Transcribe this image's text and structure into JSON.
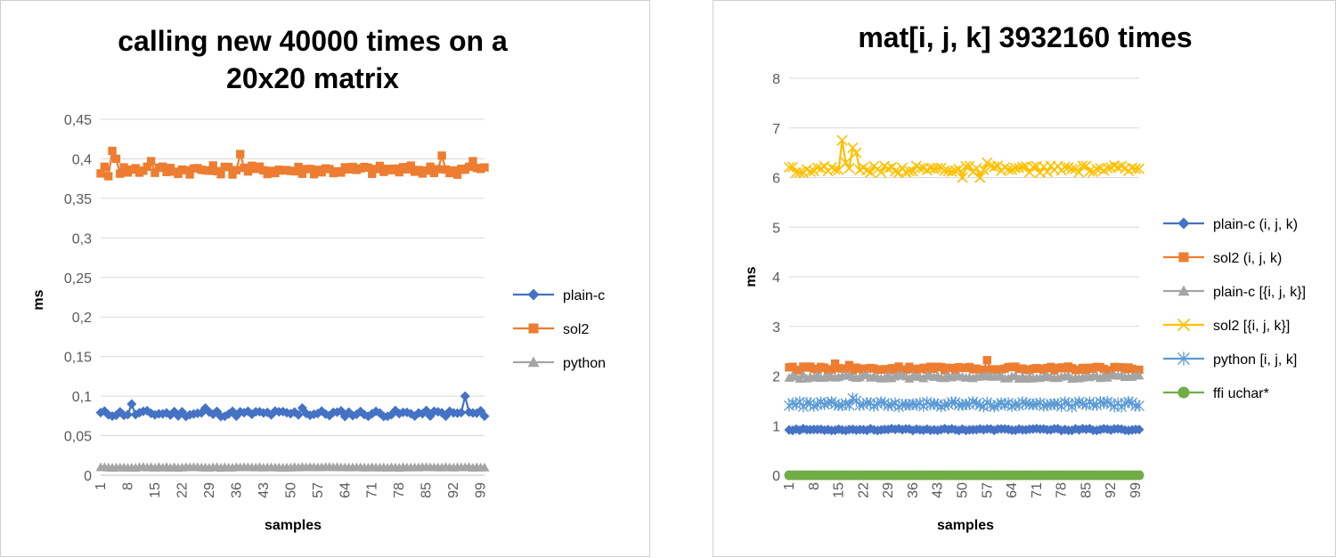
{
  "chart_data": [
    {
      "type": "line",
      "title_lines": [
        "calling new 40000 times on a",
        "20x20 matrix"
      ],
      "xlabel": "samples",
      "ylabel": "ms",
      "ylim": [
        0,
        0.45
      ],
      "y_ticks": [
        0,
        0.05,
        0.1,
        0.15,
        0.2,
        0.25,
        0.3,
        0.35,
        0.4,
        0.45
      ],
      "y_tick_labels": [
        "0",
        "0,05",
        "0,1",
        "0,15",
        "0,2",
        "0,25",
        "0,3",
        "0,35",
        "0,4",
        "0,45"
      ],
      "x_range": [
        1,
        100
      ],
      "x_tick_labels": [
        "1",
        "8",
        "15",
        "22",
        "29",
        "36",
        "43",
        "50",
        "57",
        "64",
        "71",
        "78",
        "85",
        "92",
        "99"
      ],
      "x_ticks": [
        1,
        8,
        15,
        22,
        29,
        36,
        43,
        50,
        57,
        64,
        71,
        78,
        85,
        92,
        99
      ],
      "grid": true,
      "legend_position": "right",
      "series": [
        {
          "name": "plain-c",
          "color": "#4472C4",
          "marker": "diamond",
          "base": 0.078,
          "noise": 0.004,
          "spikes": [
            [
              9,
              0.09
            ],
            [
              28,
              0.085
            ],
            [
              53,
              0.085
            ],
            [
              95,
              0.1
            ]
          ]
        },
        {
          "name": "sol2",
          "color": "#ED7D31",
          "marker": "square",
          "base": 0.386,
          "noise": 0.006,
          "spikes": [
            [
              3,
              0.378
            ],
            [
              4,
              0.41
            ],
            [
              5,
              0.4
            ],
            [
              13,
              0.39
            ],
            [
              14,
              0.397
            ],
            [
              37,
              0.406
            ],
            [
              89,
              0.404
            ],
            [
              93,
              0.38
            ],
            [
              97,
              0.397
            ]
          ]
        },
        {
          "name": "python",
          "color": "#A5A5A5",
          "marker": "triangle",
          "base": 0.01,
          "noise": 0.0005,
          "spikes": []
        }
      ]
    },
    {
      "type": "line",
      "title_lines": [
        "mat[i, j, k] 3932160 times"
      ],
      "xlabel": "samples",
      "ylabel": "ms",
      "ylim": [
        0,
        8
      ],
      "y_ticks": [
        0,
        1,
        2,
        3,
        4,
        5,
        6,
        7,
        8
      ],
      "y_tick_labels": [
        "0",
        "1",
        "2",
        "3",
        "4",
        "5",
        "6",
        "7",
        "8"
      ],
      "x_range": [
        1,
        100
      ],
      "x_tick_labels": [
        "1",
        "8",
        "15",
        "22",
        "29",
        "36",
        "43",
        "50",
        "57",
        "64",
        "71",
        "78",
        "85",
        "92",
        "99"
      ],
      "x_ticks": [
        1,
        8,
        15,
        22,
        29,
        36,
        43,
        50,
        57,
        64,
        71,
        78,
        85,
        92,
        99
      ],
      "grid": true,
      "legend_position": "right",
      "series": [
        {
          "name": "plain-c (i, j, k)",
          "color": "#4472C4",
          "marker": "diamond",
          "base": 0.92,
          "noise": 0.02,
          "spikes": []
        },
        {
          "name": "sol2 (i, j, k)",
          "color": "#ED7D31",
          "marker": "square",
          "base": 2.15,
          "noise": 0.04,
          "spikes": [
            [
              14,
              2.25
            ],
            [
              18,
              2.22
            ],
            [
              57,
              2.32
            ]
          ]
        },
        {
          "name": "plain-c [{i, j, k}]",
          "color": "#A5A5A5",
          "marker": "triangle",
          "base": 1.98,
          "noise": 0.04,
          "spikes": []
        },
        {
          "name": "sol2 [{i, j, k}]",
          "color": "#FFC000",
          "marker": "x",
          "base": 6.17,
          "noise": 0.07,
          "spikes": [
            [
              16,
              6.75
            ],
            [
              17,
              6.3
            ],
            [
              19,
              6.6
            ],
            [
              20,
              6.5
            ],
            [
              50,
              6.0
            ],
            [
              55,
              6.0
            ],
            [
              57,
              6.3
            ]
          ]
        },
        {
          "name": "python [i, j, k]",
          "color": "#5B9BD5",
          "marker": "star",
          "base": 1.43,
          "noise": 0.05,
          "spikes": [
            [
              19,
              1.55
            ],
            [
              20,
              1.5
            ]
          ]
        },
        {
          "name": "ffi uchar*",
          "color": "#70AD47",
          "marker": "circle",
          "base": 0.0,
          "noise": 0.0,
          "spikes": []
        }
      ]
    }
  ]
}
